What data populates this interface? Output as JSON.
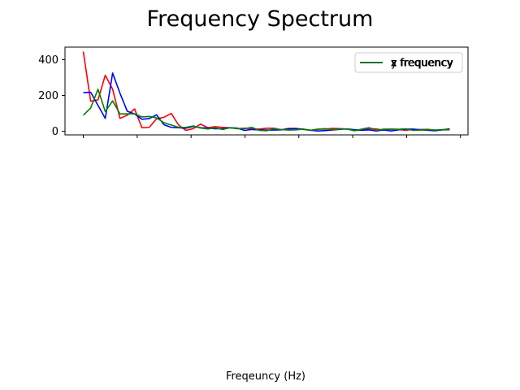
{
  "title": "Frequency Spectrum",
  "xlabel": "Freqeuncy (Hz)",
  "chart_data": [
    {
      "type": "line",
      "title": "",
      "xlabel": "",
      "ylabel": "",
      "xlim": [
        -0.85,
        17.85
      ],
      "ylim": [
        -20,
        470
      ],
      "xticks": [
        0.0,
        2.5,
        5.0,
        7.5,
        10.0,
        12.5,
        15.0,
        17.5
      ],
      "xtick_labels_visible": false,
      "yticks": [
        0,
        200,
        400
      ],
      "grid": false,
      "legend_position": "upper right",
      "series": [
        {
          "name": "x frequency",
          "color": "#ff0000",
          "x": [
            0,
            0.34,
            0.68,
            1.02,
            1.36,
            1.7,
            2.04,
            2.38,
            2.72,
            3.06,
            3.4,
            3.74,
            4.08,
            4.42,
            4.76,
            5.1,
            5.44,
            5.78,
            6.12,
            6.46,
            6.8,
            7.14,
            7.48,
            7.82,
            8.16,
            8.5,
            8.84,
            9.18,
            9.52,
            9.86,
            10.2,
            10.54,
            10.88,
            11.22,
            11.56,
            11.9,
            12.24,
            12.58,
            12.92,
            13.26,
            13.6,
            13.94,
            14.28,
            14.62,
            14.96,
            15.3,
            15.64,
            15.98,
            16.32,
            16.66,
            17.0
          ],
          "y": [
            445,
            168,
            175,
            313,
            235,
            72,
            90,
            125,
            20,
            22,
            70,
            78,
            100,
            35,
            5,
            15,
            40,
            20,
            26,
            22,
            20,
            15,
            17,
            14,
            12,
            17,
            17,
            8,
            16,
            16,
            10,
            6,
            12,
            12,
            16,
            15,
            12,
            5,
            6,
            15,
            13,
            6,
            12,
            11,
            5,
            11,
            10,
            11,
            6,
            8,
            8
          ]
        },
        {
          "name": "y frequency",
          "color": "#0000ff",
          "x": [
            0,
            0.34,
            0.68,
            1.02,
            1.36,
            1.7,
            2.04,
            2.38,
            2.72,
            3.06,
            3.4,
            3.74,
            4.08,
            4.42,
            4.76,
            5.1,
            5.44,
            5.78,
            6.12,
            6.46,
            6.8,
            7.14,
            7.48,
            7.82,
            8.16,
            8.5,
            8.84,
            9.18,
            9.52,
            9.86,
            10.2,
            10.54,
            10.88,
            11.22,
            11.56,
            11.9,
            12.24,
            12.58,
            12.92,
            13.26,
            13.6,
            13.94,
            14.28,
            14.62,
            14.96,
            15.3,
            15.64,
            15.98,
            16.32,
            16.66,
            17.0
          ],
          "y": [
            216,
            218,
            145,
            72,
            325,
            213,
            112,
            97,
            67,
            71,
            92,
            37,
            22,
            20,
            17,
            27,
            20,
            18,
            14,
            15,
            20,
            18,
            5,
            10,
            8,
            7,
            7,
            8,
            13,
            15,
            12,
            6,
            2,
            4,
            7,
            11,
            13,
            9,
            6,
            8,
            2,
            8,
            2,
            8,
            12,
            12,
            8,
            6,
            3,
            8,
            14
          ]
        },
        {
          "name": "z frequency",
          "color": "#008000",
          "x": [
            0,
            0.34,
            0.68,
            1.02,
            1.36,
            1.7,
            2.04,
            2.38,
            2.72,
            3.06,
            3.4,
            3.74,
            4.08,
            4.42,
            4.76,
            5.1,
            5.44,
            5.78,
            6.12,
            6.46,
            6.8,
            7.14,
            7.48,
            7.82,
            8.16,
            8.5,
            8.84,
            9.18,
            9.52,
            9.86,
            10.2,
            10.54,
            10.88,
            11.22,
            11.56,
            11.9,
            12.24,
            12.58,
            12.92,
            13.26,
            13.6,
            13.94,
            14.28,
            14.62,
            14.96,
            15.3,
            15.64,
            15.98,
            16.32,
            16.66,
            17.0
          ],
          "y": [
            90,
            130,
            235,
            110,
            170,
            97,
            97,
            98,
            80,
            83,
            75,
            48,
            35,
            22,
            22,
            30,
            18,
            13,
            20,
            10,
            20,
            15,
            15,
            22,
            5,
            3,
            14,
            10,
            7,
            8,
            12,
            5,
            11,
            15,
            8,
            13,
            13,
            3,
            12,
            20,
            5,
            12,
            12,
            11,
            14,
            5,
            7,
            10,
            7,
            9,
            9
          ]
        }
      ]
    }
  ]
}
